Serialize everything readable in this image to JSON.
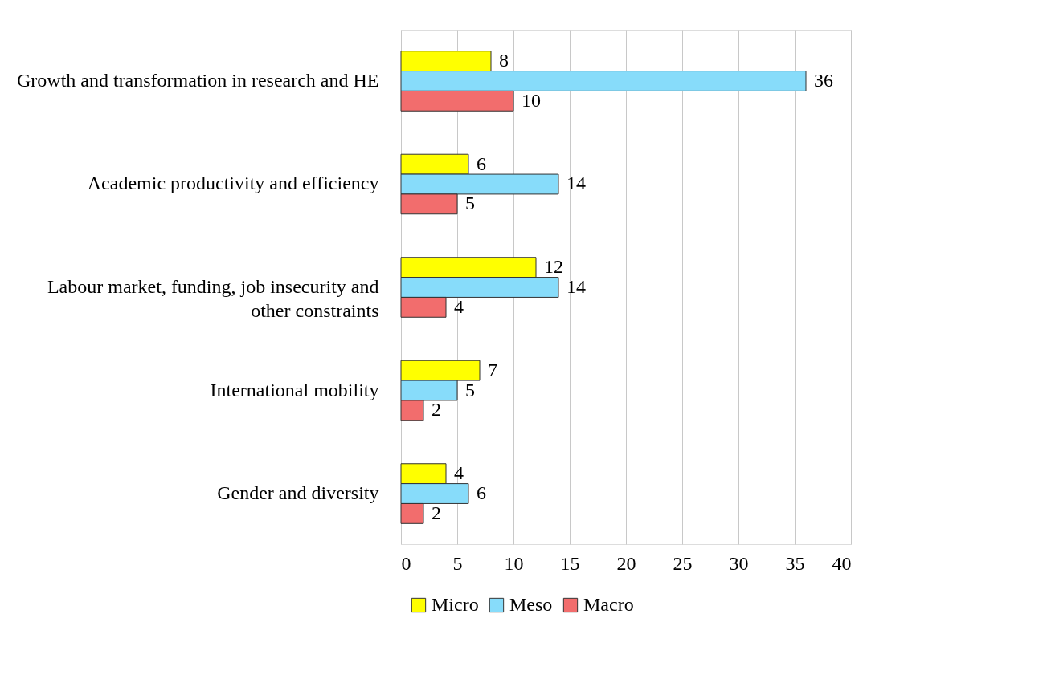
{
  "chart_data": {
    "type": "bar",
    "orientation": "horizontal",
    "categories": [
      "Growth and transformation in research and HE",
      "Academic productivity and efficiency",
      "Labour market, funding, job insecurity and other constraints",
      "International mobility",
      "Gender and diversity"
    ],
    "series": [
      {
        "name": "Micro",
        "color": "#ffff00",
        "values": [
          8,
          6,
          12,
          7,
          4
        ]
      },
      {
        "name": "Meso",
        "color": "#87dcfa",
        "values": [
          36,
          14,
          14,
          5,
          6
        ]
      },
      {
        "name": "Macro",
        "color": "#f26d6d",
        "values": [
          10,
          5,
          4,
          2,
          2
        ]
      }
    ],
    "xlim": [
      0,
      40
    ],
    "xticks": [
      0,
      5,
      10,
      15,
      20,
      25,
      30,
      35,
      40
    ],
    "grid": "x",
    "legend": "bottom",
    "data_labels": true
  }
}
